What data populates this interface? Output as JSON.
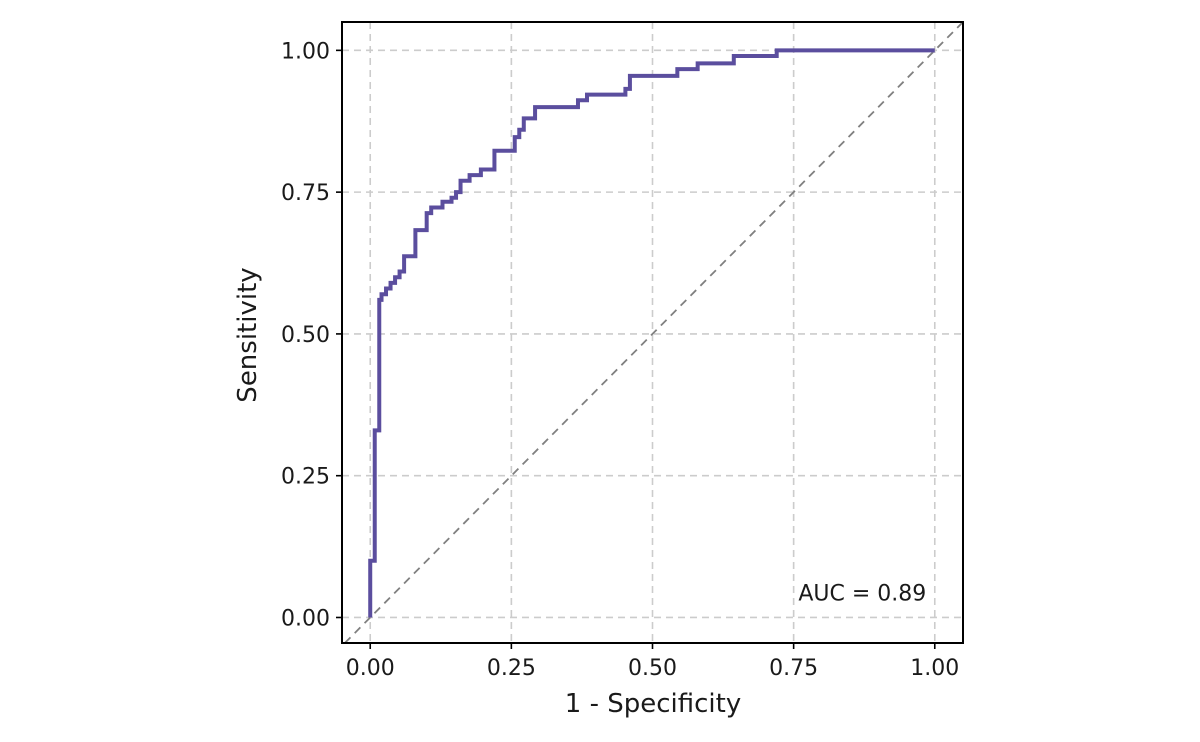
{
  "chart_data": {
    "type": "line",
    "title": "",
    "xlabel": "1 - Specificity",
    "ylabel": "Sensitivity",
    "xlim": [
      -0.05,
      1.05
    ],
    "ylim": [
      -0.045,
      1.05
    ],
    "xticks": [
      0,
      0.25,
      0.5,
      0.75,
      1
    ],
    "yticks": [
      0,
      0.25,
      0.5,
      0.75,
      1
    ],
    "xtick_labels": [
      "0.00",
      "0.25",
      "0.50",
      "0.75",
      "1.00"
    ],
    "ytick_labels": [
      "0.00",
      "0.25",
      "0.50",
      "0.75",
      "1.00"
    ],
    "grid": true,
    "reference_line": {
      "name": "chance",
      "x": [
        0,
        1
      ],
      "y": [
        0,
        1
      ],
      "style": "dashed",
      "color": "#808080"
    },
    "annotation": {
      "text": "AUC = 0.89",
      "x": 0.985,
      "y": 0.03
    },
    "series": [
      {
        "name": "ROC curve",
        "color": "#5b4e9e",
        "x": [
          0,
          0,
          0.008,
          0.008,
          0.016,
          0.016,
          0.02,
          0.02,
          0.028,
          0.028,
          0.036,
          0.036,
          0.044,
          0.044,
          0.052,
          0.052,
          0.06,
          0.06,
          0.064,
          0.064,
          0.08,
          0.08,
          0.1,
          0.1,
          0.108,
          0.108,
          0.128,
          0.128,
          0.144,
          0.144,
          0.152,
          0.152,
          0.16,
          0.16,
          0.176,
          0.176,
          0.196,
          0.196,
          0.22,
          0.22,
          0.256,
          0.256,
          0.264,
          0.264,
          0.272,
          0.272,
          0.292,
          0.292,
          0.368,
          0.368,
          0.384,
          0.384,
          0.452,
          0.452,
          0.46,
          0.46,
          0.544,
          0.544,
          0.58,
          0.58,
          0.644,
          0.644,
          0.72,
          0.72,
          1
        ],
        "y": [
          0,
          0.1,
          0.1,
          0.33,
          0.33,
          0.56,
          0.56,
          0.57,
          0.57,
          0.58,
          0.58,
          0.59,
          0.59,
          0.6,
          0.6,
          0.61,
          0.61,
          0.637,
          0.637,
          0.637,
          0.637,
          0.683,
          0.683,
          0.713,
          0.713,
          0.723,
          0.723,
          0.733,
          0.733,
          0.74,
          0.74,
          0.75,
          0.75,
          0.77,
          0.77,
          0.78,
          0.78,
          0.79,
          0.79,
          0.823,
          0.823,
          0.847,
          0.847,
          0.86,
          0.86,
          0.88,
          0.88,
          0.9,
          0.9,
          0.912,
          0.912,
          0.922,
          0.922,
          0.932,
          0.932,
          0.955,
          0.955,
          0.967,
          0.967,
          0.977,
          0.977,
          0.99,
          0.99,
          1,
          1
        ]
      }
    ]
  }
}
